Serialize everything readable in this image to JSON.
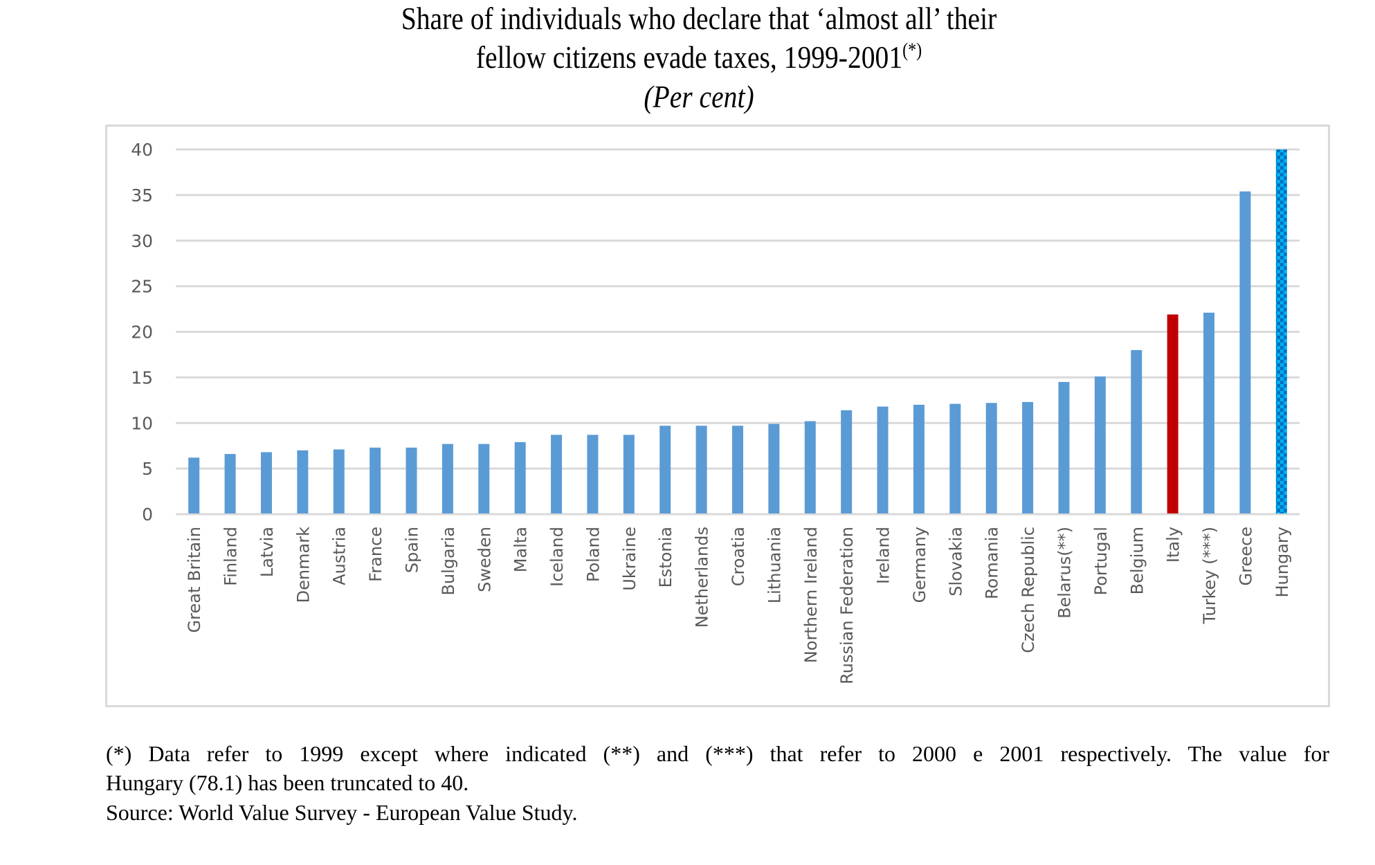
{
  "title": {
    "line1": "Share of individuals who declare that ‘almost all’ their",
    "line2": "fellow citizens evade taxes, 1999-2001",
    "line2_sup": "(*)",
    "line3": "(Per cent)"
  },
  "footnotes": {
    "line1": " (*) Data refer to 1999 except where indicated (**) and (***) that refer to 2000 e 2001 respectively. The value for",
    "line2": "Hungary (78.1) has been truncated to 40.",
    "line3": "Source: World Value Survey - European Value Study."
  },
  "colors": {
    "bar_default": "#5b9bd5",
    "bar_highlight": "#c00000",
    "bar_pattern_dark": "#0070c0",
    "bar_pattern_light": "#00b0f0",
    "gridline": "#d9d9d9",
    "tick_label": "#595959"
  },
  "chart_data": {
    "type": "bar",
    "title": "Share of individuals who declare that ‘almost all’ their fellow citizens evade taxes, 1999-2001 (*) (Per cent)",
    "xlabel": "",
    "ylabel": "",
    "ylim": [
      0,
      40
    ],
    "yticks": [
      0,
      5,
      10,
      15,
      20,
      25,
      30,
      35,
      40
    ],
    "grid": true,
    "legend": "none",
    "categories": [
      "Great Britain",
      "Finland",
      "Latvia",
      "Denmark",
      "Austria",
      "France",
      "Spain",
      "Bulgaria",
      "Sweden",
      "Malta",
      "Iceland",
      "Poland",
      "Ukraine",
      "Estonia",
      "Netherlands",
      "Croatia",
      "Lithuania",
      "Northern Ireland",
      "Russian Federation",
      "Ireland",
      "Germany",
      "Slovakia",
      "Romania",
      "Czech Republic",
      "Belarus(**)",
      "Portugal",
      "Belgium",
      "Italy",
      "Turkey (***)",
      "Greece",
      "Hungary"
    ],
    "values": [
      6.2,
      6.6,
      6.8,
      7.0,
      7.1,
      7.3,
      7.3,
      7.7,
      7.7,
      7.9,
      8.7,
      8.7,
      8.7,
      9.7,
      9.7,
      9.7,
      9.9,
      10.2,
      11.4,
      11.8,
      12.0,
      12.1,
      12.2,
      12.3,
      14.5,
      15.1,
      18.0,
      21.9,
      22.1,
      35.4,
      40
    ],
    "highlight": {
      "Italy": "highlight",
      "Hungary": "pattern"
    },
    "annotations": [
      "Hungary actual value 78.1, truncated to 40"
    ]
  }
}
